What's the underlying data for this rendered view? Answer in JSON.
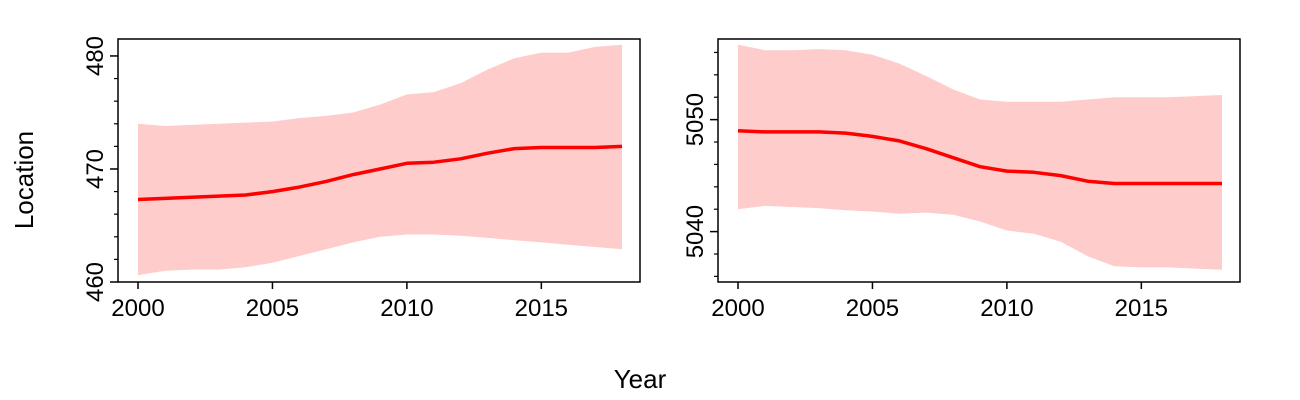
{
  "figure": {
    "xlabel": "Year",
    "ylabel": "Location"
  },
  "colors": {
    "line": "#ff0000",
    "band": "#ffcccc",
    "axis": "#000000"
  },
  "chart_data": [
    {
      "type": "line",
      "x_ticks": [
        2000,
        2005,
        2010,
        2015
      ],
      "x_tick_labels": [
        "2000",
        "2005",
        "2010",
        "2015"
      ],
      "xlim": [
        2000,
        2018
      ],
      "ylim": [
        460,
        481.5
      ],
      "y_ticks": [
        460,
        470,
        480
      ],
      "y_tick_labels": [
        "460",
        "470",
        "480"
      ],
      "y_minor_ticks": [
        462,
        464,
        466,
        468,
        472,
        474,
        476,
        478
      ],
      "x": [
        2000,
        2001,
        2002,
        2003,
        2004,
        2005,
        2006,
        2007,
        2008,
        2009,
        2010,
        2011,
        2012,
        2013,
        2014,
        2015,
        2016,
        2017,
        2018
      ],
      "series": [
        {
          "values": [
            467.3,
            467.4,
            467.5,
            467.6,
            467.7,
            468.0,
            468.4,
            468.9,
            469.5,
            470.0,
            470.5,
            470.6,
            470.9,
            471.4,
            471.8,
            471.9,
            471.9,
            471.9,
            472.0
          ],
          "lower": [
            460.6,
            461.0,
            461.1,
            461.1,
            461.3,
            461.7,
            462.3,
            462.9,
            463.5,
            464.0,
            464.2,
            464.2,
            464.1,
            463.9,
            463.7,
            463.5,
            463.3,
            463.1,
            462.9
          ],
          "upper": [
            474.0,
            473.8,
            473.9,
            474.0,
            474.1,
            474.2,
            474.5,
            474.7,
            475.0,
            475.7,
            476.6,
            476.8,
            477.6,
            478.8,
            479.8,
            480.3,
            480.3,
            480.8,
            481.0
          ]
        }
      ]
    },
    {
      "type": "line",
      "x_ticks": [
        2000,
        2005,
        2010,
        2015
      ],
      "x_tick_labels": [
        "2000",
        "2005",
        "2010",
        "2015"
      ],
      "xlim": [
        2000,
        2018
      ],
      "ylim": [
        5035.5,
        5057.2
      ],
      "y_ticks": [
        5040,
        5050
      ],
      "y_tick_labels": [
        "5040",
        "5050"
      ],
      "y_minor_ticks": [
        5036,
        5038,
        5042,
        5044,
        5046,
        5048,
        5052,
        5054,
        5056
      ],
      "x": [
        2000,
        2001,
        2002,
        2003,
        2004,
        2005,
        2006,
        2007,
        2008,
        2009,
        2010,
        2011,
        2012,
        2013,
        2014,
        2015,
        2016,
        2017,
        2018
      ],
      "series": [
        {
          "values": [
            5049.0,
            5048.9,
            5048.9,
            5048.9,
            5048.8,
            5048.5,
            5048.1,
            5047.4,
            5046.6,
            5045.8,
            5045.4,
            5045.3,
            5045.0,
            5044.5,
            5044.3,
            5044.3,
            5044.3,
            5044.3,
            5044.3
          ],
          "lower": [
            5042.0,
            5042.3,
            5042.2,
            5042.1,
            5041.9,
            5041.8,
            5041.6,
            5041.7,
            5041.5,
            5040.9,
            5040.1,
            5039.8,
            5039.1,
            5037.8,
            5036.9,
            5036.8,
            5036.8,
            5036.7,
            5036.6
          ],
          "upper": [
            5056.7,
            5056.2,
            5056.2,
            5056.3,
            5056.2,
            5055.8,
            5055.0,
            5053.9,
            5052.7,
            5051.8,
            5051.6,
            5051.6,
            5051.6,
            5051.8,
            5052.0,
            5052.0,
            5052.0,
            5052.1,
            5052.2
          ]
        }
      ]
    }
  ]
}
